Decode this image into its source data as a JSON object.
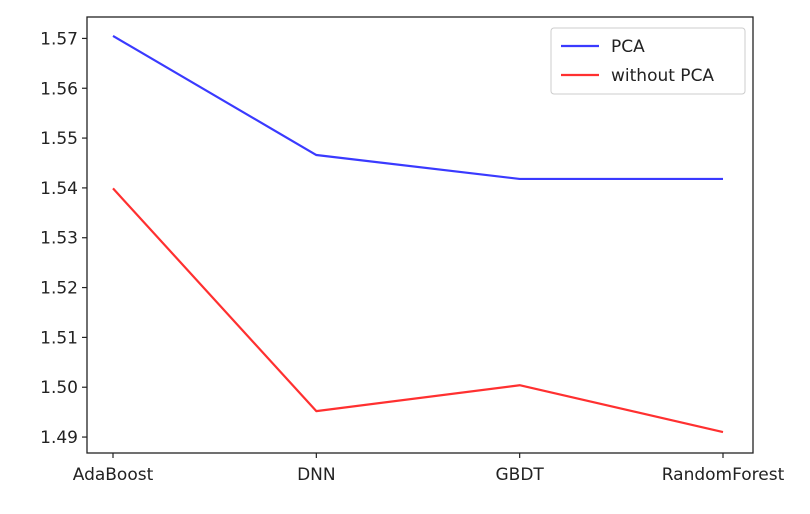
{
  "chart_data": {
    "type": "line",
    "title": "",
    "xlabel": "",
    "ylabel": "",
    "categories": [
      "AdaBoost",
      "DNN",
      "GBDT",
      "RandomForest"
    ],
    "series": [
      {
        "name": "PCA",
        "color": "#3a3aff",
        "values": [
          1.5705,
          1.5466,
          1.5418,
          1.5418
        ]
      },
      {
        "name": "without PCA",
        "color": "#ff3030",
        "values": [
          1.5399,
          1.4952,
          1.5004,
          1.491
        ]
      }
    ],
    "ylim": [
      1.4868,
      1.5743
    ],
    "yticks": [
      "1.49",
      "1.50",
      "1.51",
      "1.52",
      "1.53",
      "1.54",
      "1.55",
      "1.56",
      "1.57"
    ],
    "grid": false,
    "legend": "top-right"
  }
}
